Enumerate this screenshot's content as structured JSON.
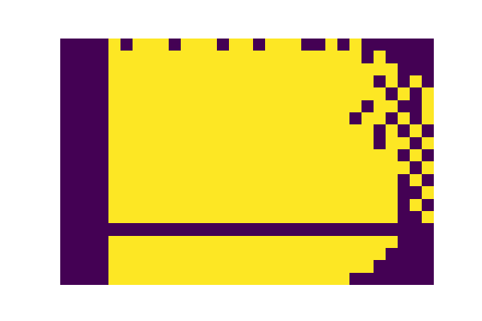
{
  "chart_data": {
    "type": "heatmap",
    "tick_labels": false,
    "cells": [
      [
        0,
        0,
        0,
        0,
        1,
        0,
        1,
        1,
        1,
        0,
        1,
        1,
        1,
        0,
        1,
        1,
        0,
        1,
        1,
        1,
        0,
        0,
        1,
        0,
        1,
        0,
        0,
        0,
        0,
        0,
        0
      ],
      [
        0,
        0,
        0,
        0,
        1,
        1,
        1,
        1,
        1,
        1,
        1,
        1,
        1,
        1,
        1,
        1,
        1,
        1,
        1,
        1,
        1,
        1,
        1,
        1,
        1,
        0,
        1,
        0,
        0,
        0,
        0
      ],
      [
        0,
        0,
        0,
        0,
        1,
        1,
        1,
        1,
        1,
        1,
        1,
        1,
        1,
        1,
        1,
        1,
        1,
        1,
        1,
        1,
        1,
        1,
        1,
        1,
        1,
        1,
        1,
        1,
        0,
        0,
        0
      ],
      [
        0,
        0,
        0,
        0,
        1,
        1,
        1,
        1,
        1,
        1,
        1,
        1,
        1,
        1,
        1,
        1,
        1,
        1,
        1,
        1,
        1,
        1,
        1,
        1,
        1,
        1,
        0,
        1,
        0,
        1,
        0
      ],
      [
        0,
        0,
        0,
        0,
        1,
        1,
        1,
        1,
        1,
        1,
        1,
        1,
        1,
        1,
        1,
        1,
        1,
        1,
        1,
        1,
        1,
        1,
        1,
        1,
        1,
        1,
        1,
        0,
        1,
        0,
        1
      ],
      [
        0,
        0,
        0,
        0,
        1,
        1,
        1,
        1,
        1,
        1,
        1,
        1,
        1,
        1,
        1,
        1,
        1,
        1,
        1,
        1,
        1,
        1,
        1,
        1,
        1,
        0,
        1,
        1,
        0,
        0,
        1
      ],
      [
        0,
        0,
        0,
        0,
        1,
        1,
        1,
        1,
        1,
        1,
        1,
        1,
        1,
        1,
        1,
        1,
        1,
        1,
        1,
        1,
        1,
        1,
        1,
        1,
        0,
        1,
        1,
        0,
        1,
        0,
        1
      ],
      [
        0,
        0,
        0,
        0,
        1,
        1,
        1,
        1,
        1,
        1,
        1,
        1,
        1,
        1,
        1,
        1,
        1,
        1,
        1,
        1,
        1,
        1,
        1,
        1,
        1,
        1,
        0,
        1,
        0,
        1,
        0
      ],
      [
        0,
        0,
        0,
        0,
        1,
        1,
        1,
        1,
        1,
        1,
        1,
        1,
        1,
        1,
        1,
        1,
        1,
        1,
        1,
        1,
        1,
        1,
        1,
        1,
        1,
        1,
        0,
        1,
        1,
        0,
        1
      ],
      [
        0,
        0,
        0,
        0,
        1,
        1,
        1,
        1,
        1,
        1,
        1,
        1,
        1,
        1,
        1,
        1,
        1,
        1,
        1,
        1,
        1,
        1,
        1,
        1,
        1,
        1,
        1,
        1,
        0,
        1,
        0
      ],
      [
        0,
        0,
        0,
        0,
        1,
        1,
        1,
        1,
        1,
        1,
        1,
        1,
        1,
        1,
        1,
        1,
        1,
        1,
        1,
        1,
        1,
        1,
        1,
        1,
        1,
        1,
        1,
        1,
        1,
        0,
        1
      ],
      [
        0,
        0,
        0,
        0,
        1,
        1,
        1,
        1,
        1,
        1,
        1,
        1,
        1,
        1,
        1,
        1,
        1,
        1,
        1,
        1,
        1,
        1,
        1,
        1,
        1,
        1,
        1,
        1,
        0,
        1,
        0
      ],
      [
        0,
        0,
        0,
        0,
        1,
        1,
        1,
        1,
        1,
        1,
        1,
        1,
        1,
        1,
        1,
        1,
        1,
        1,
        1,
        1,
        1,
        1,
        1,
        1,
        1,
        1,
        1,
        1,
        0,
        0,
        1
      ],
      [
        0,
        0,
        0,
        0,
        1,
        1,
        1,
        1,
        1,
        1,
        1,
        1,
        1,
        1,
        1,
        1,
        1,
        1,
        1,
        1,
        1,
        1,
        1,
        1,
        1,
        1,
        1,
        1,
        0,
        1,
        0
      ],
      [
        0,
        0,
        0,
        0,
        1,
        1,
        1,
        1,
        1,
        1,
        1,
        1,
        1,
        1,
        1,
        1,
        1,
        1,
        1,
        1,
        1,
        1,
        1,
        1,
        1,
        1,
        1,
        1,
        0,
        0,
        1
      ],
      [
        0,
        0,
        0,
        0,
        0,
        0,
        0,
        0,
        0,
        0,
        0,
        0,
        0,
        0,
        0,
        0,
        0,
        0,
        0,
        0,
        0,
        0,
        0,
        0,
        0,
        0,
        0,
        0,
        0,
        0,
        0
      ],
      [
        0,
        0,
        0,
        0,
        1,
        1,
        1,
        1,
        1,
        1,
        1,
        1,
        1,
        1,
        1,
        1,
        1,
        1,
        1,
        1,
        1,
        1,
        1,
        1,
        1,
        1,
        1,
        1,
        0,
        0,
        0
      ],
      [
        0,
        0,
        0,
        0,
        1,
        1,
        1,
        1,
        1,
        1,
        1,
        1,
        1,
        1,
        1,
        1,
        1,
        1,
        1,
        1,
        1,
        1,
        1,
        1,
        1,
        1,
        1,
        0,
        0,
        0,
        0
      ],
      [
        0,
        0,
        0,
        0,
        1,
        1,
        1,
        1,
        1,
        1,
        1,
        1,
        1,
        1,
        1,
        1,
        1,
        1,
        1,
        1,
        1,
        1,
        1,
        1,
        1,
        1,
        0,
        0,
        0,
        0,
        0
      ],
      [
        0,
        0,
        0,
        0,
        1,
        1,
        1,
        1,
        1,
        1,
        1,
        1,
        1,
        1,
        1,
        1,
        1,
        1,
        1,
        1,
        1,
        1,
        1,
        1,
        0,
        0,
        0,
        0,
        0,
        0,
        0
      ]
    ]
  }
}
